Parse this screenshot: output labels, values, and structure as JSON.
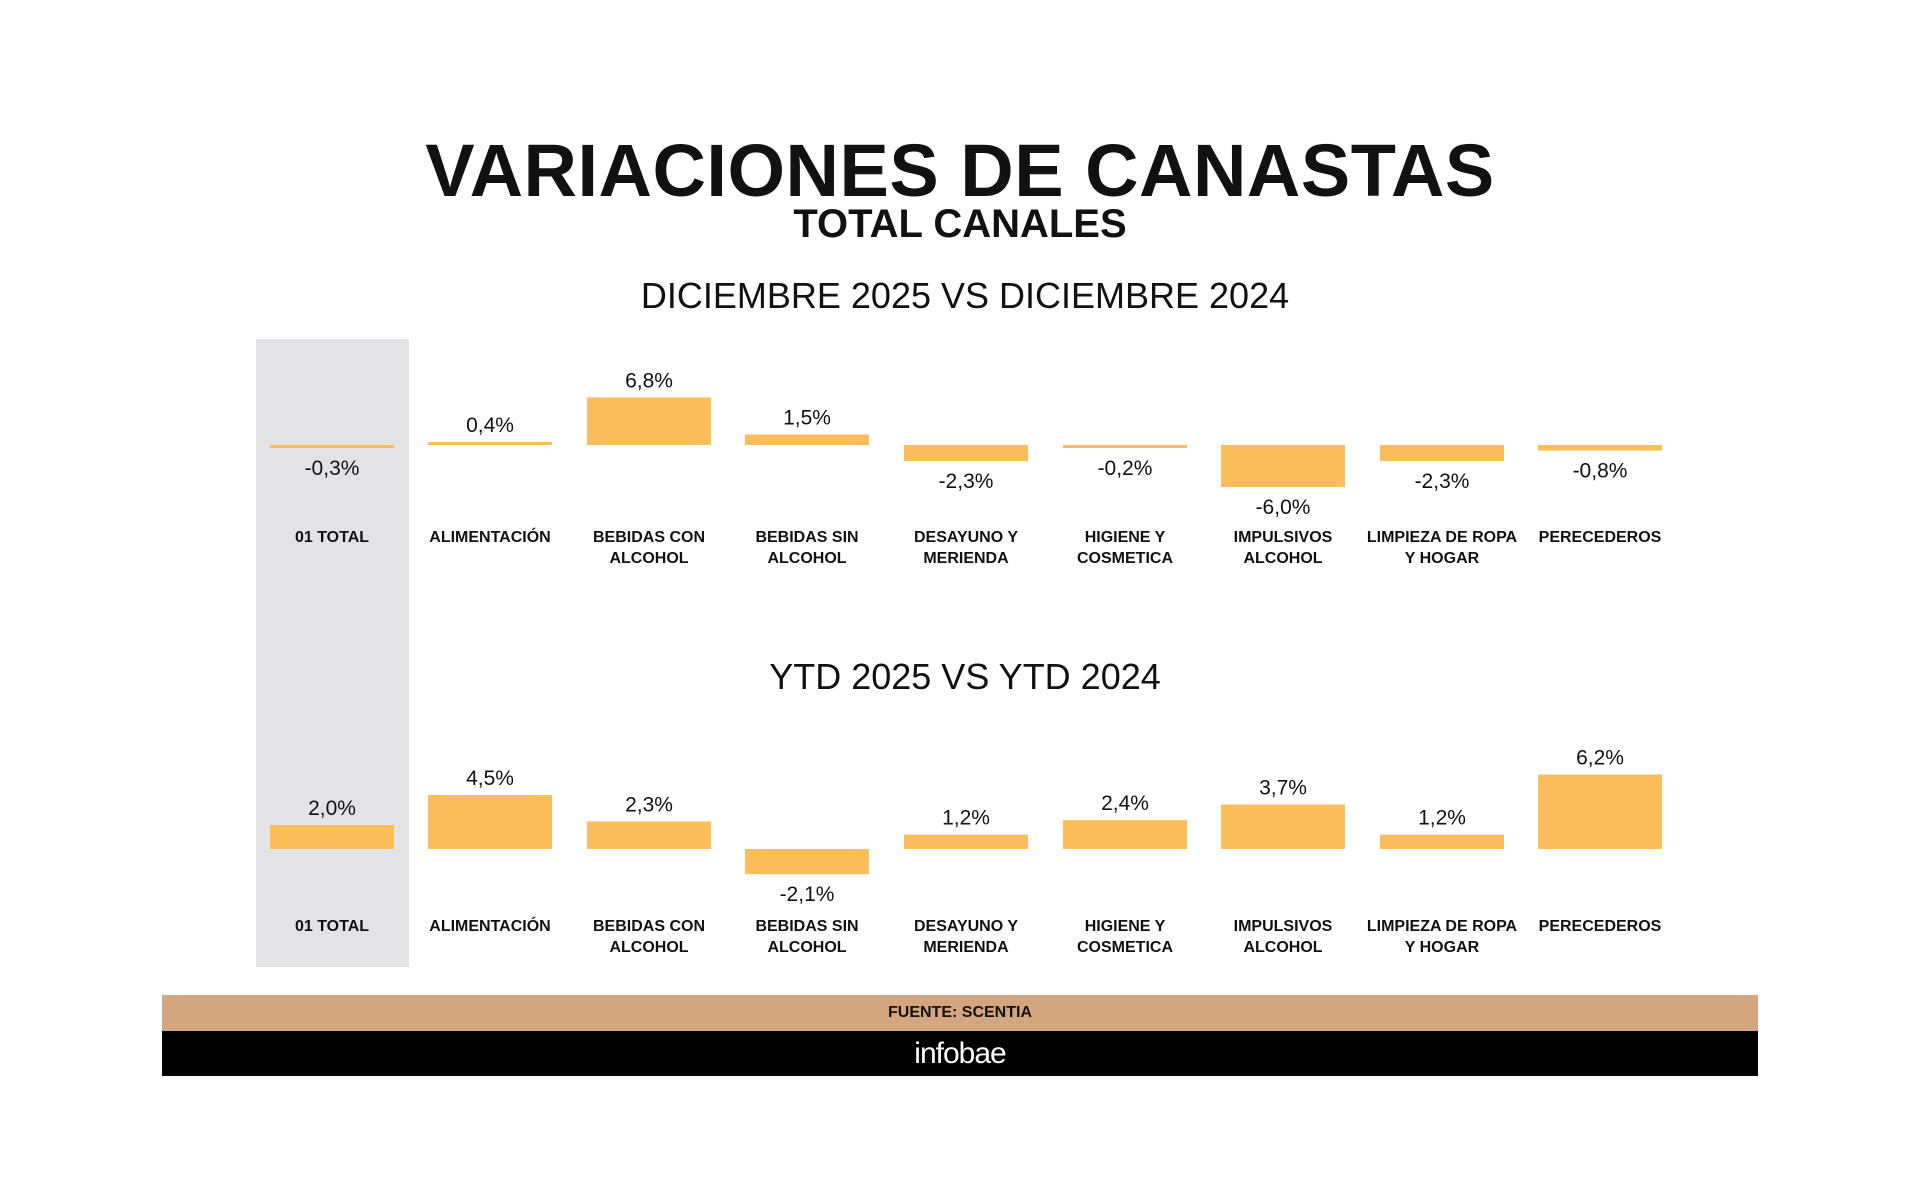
{
  "title": "VARIACIONES DE CANASTAS",
  "subtitle": "TOTAL CANALES",
  "source": "FUENTE: SCENTIA",
  "logo": "infobae",
  "colors": {
    "bar": "#fdbd5a",
    "highlight_column": "#e3e3e5",
    "source_band": "#d4a67f",
    "logo_band": "#000000"
  },
  "chart_data": [
    {
      "type": "bar",
      "title": "DICIEMBRE 2025 VS DICIEMBRE 2024",
      "categories": [
        [
          "01 TOTAL"
        ],
        [
          "ALIMENTACIÓN"
        ],
        [
          "BEBIDAS CON",
          "ALCOHOL"
        ],
        [
          "BEBIDAS SIN",
          "ALCOHOL"
        ],
        [
          "DESAYUNO Y",
          "MERIENDA"
        ],
        [
          "HIGIENE Y",
          "COSMETICA"
        ],
        [
          "IMPULSIVOS",
          "ALCOHOL"
        ],
        [
          "LIMPIEZA DE ROPA",
          "Y HOGAR"
        ],
        [
          "PERECEDEROS"
        ]
      ],
      "values": [
        -0.3,
        0.4,
        6.8,
        1.5,
        -2.3,
        -0.2,
        -6.0,
        -2.3,
        -0.8
      ],
      "labels": [
        "-0,3%",
        "0,4%",
        "6,8%",
        "1,5%",
        "-2,3%",
        "-0,2%",
        "-6,0%",
        "-2,3%",
        "-0,8%"
      ],
      "unit": "%",
      "highlighted_category": "01 TOTAL"
    },
    {
      "type": "bar",
      "title": "YTD 2025 VS YTD 2024",
      "categories": [
        [
          "01 TOTAL"
        ],
        [
          "ALIMENTACIÓN"
        ],
        [
          "BEBIDAS CON",
          "ALCOHOL"
        ],
        [
          "BEBIDAS SIN",
          "ALCOHOL"
        ],
        [
          "DESAYUNO Y",
          "MERIENDA"
        ],
        [
          "HIGIENE Y",
          "COSMETICA"
        ],
        [
          "IMPULSIVOS",
          "ALCOHOL"
        ],
        [
          "LIMPIEZA DE ROPA",
          "Y HOGAR"
        ],
        [
          "PERECEDEROS"
        ]
      ],
      "values": [
        2.0,
        4.5,
        2.3,
        -2.1,
        1.2,
        2.4,
        3.7,
        1.2,
        6.2
      ],
      "labels": [
        "2,0%",
        "4,5%",
        "2,3%",
        "-2,1%",
        "1,2%",
        "2,4%",
        "3,7%",
        "1,2%",
        "6,2%"
      ],
      "unit": "%",
      "highlighted_category": "01 TOTAL"
    }
  ]
}
